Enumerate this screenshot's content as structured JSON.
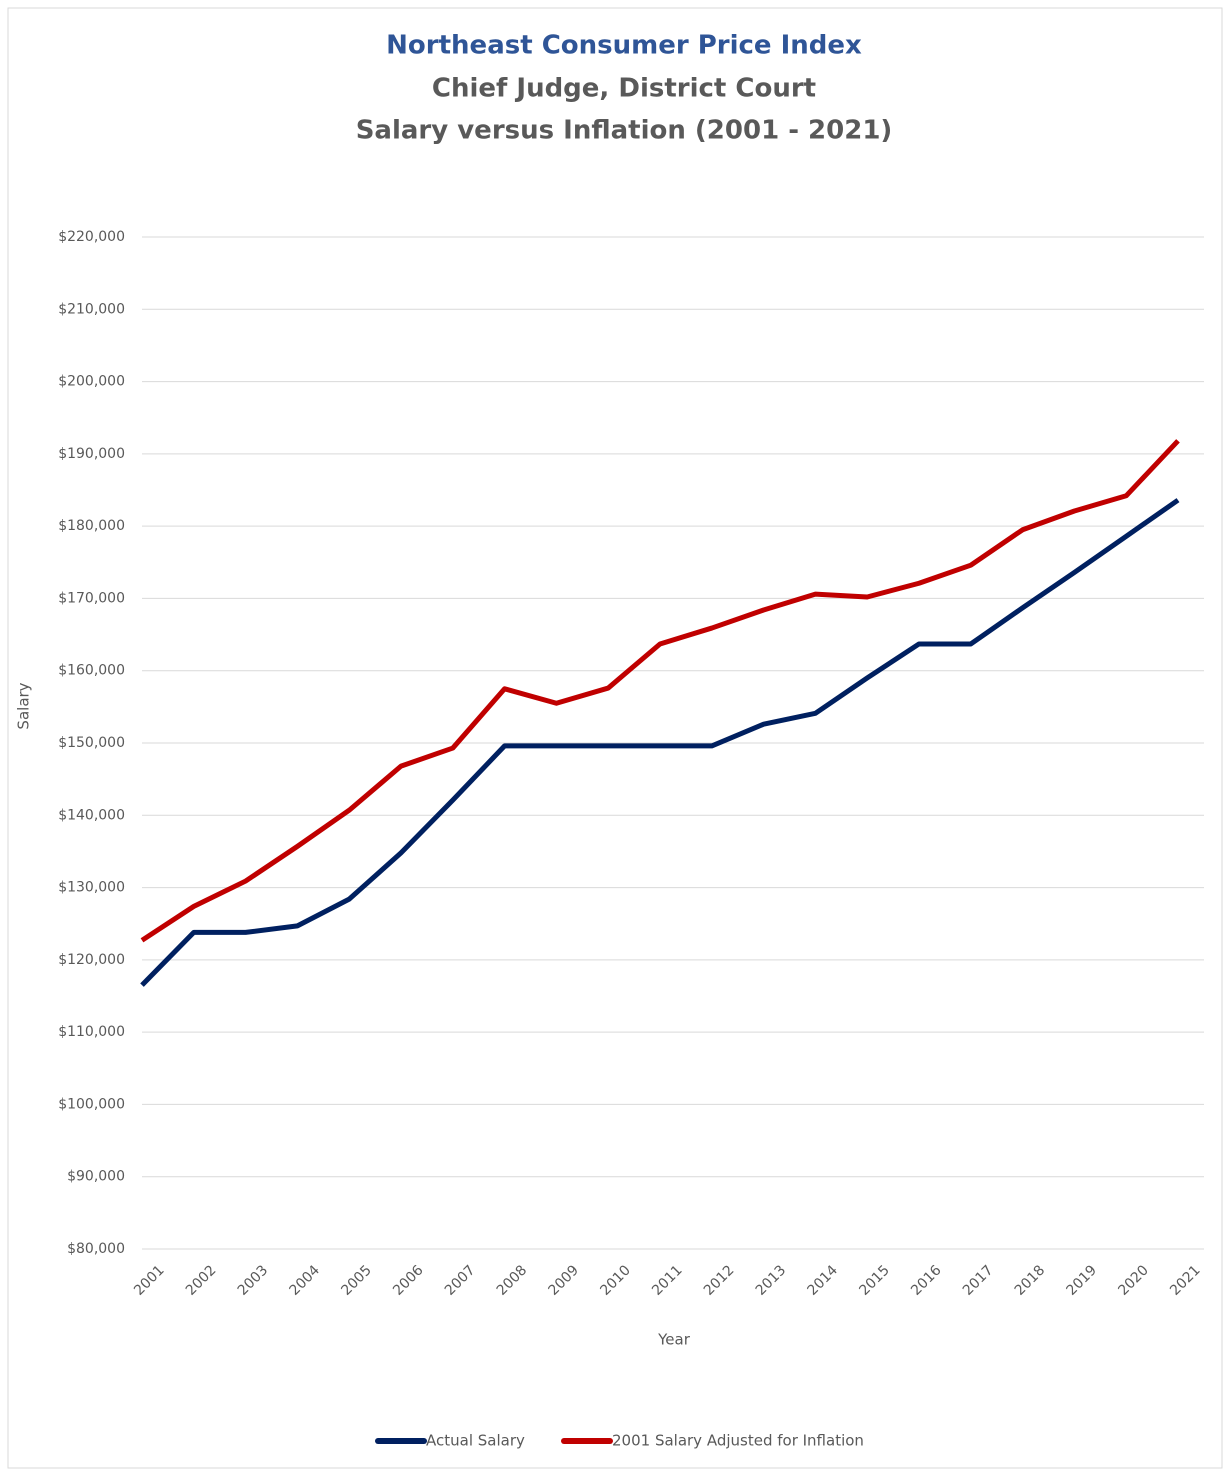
{
  "chart_data": {
    "type": "line",
    "title": "Northeast Consumer Price Index",
    "subtitle": [
      "Chief Judge, District Court",
      "Salary versus Inflation (2001 - 2021)"
    ],
    "xlabel": "Year",
    "ylabel": "Salary",
    "categories": [
      "2001",
      "2002",
      "2003",
      "2004",
      "2005",
      "2006",
      "2007",
      "2008",
      "2009",
      "2010",
      "2011",
      "2012",
      "2013",
      "2014",
      "2015",
      "2016",
      "2017",
      "2018",
      "2019",
      "2020",
      "2021"
    ],
    "series": [
      {
        "name": "Actual Salary",
        "color": "#002060",
        "values": [
          116500,
          123800,
          123800,
          124700,
          128400,
          134800,
          142100,
          149600,
          149600,
          149600,
          149600,
          149600,
          152600,
          154100,
          159000,
          163700,
          163700,
          168700,
          173600,
          178600,
          183600
        ]
      },
      {
        "name": "2001 Salary Adjusted for Inflation",
        "color": "#c00000",
        "values": [
          122700,
          127400,
          130900,
          135700,
          140700,
          146800,
          149300,
          157500,
          155500,
          157600,
          163700,
          165900,
          168400,
          170600,
          170200,
          172100,
          174600,
          179500,
          182100,
          184200,
          191800
        ]
      }
    ],
    "ylim": [
      80000,
      220000
    ],
    "yticks": [
      {
        "value": 80000,
        "label": "$80,000"
      },
      {
        "value": 90000,
        "label": "$90,000"
      },
      {
        "value": 100000,
        "label": "$100,000"
      },
      {
        "value": 110000,
        "label": "$110,000"
      },
      {
        "value": 120000,
        "label": "$120,000"
      },
      {
        "value": 130000,
        "label": "$130,000"
      },
      {
        "value": 140000,
        "label": "$140,000"
      },
      {
        "value": 150000,
        "label": "$150,000"
      },
      {
        "value": 160000,
        "label": "$160,000"
      },
      {
        "value": 170000,
        "label": "$170,000"
      },
      {
        "value": 180000,
        "label": "$180,000"
      },
      {
        "value": 190000,
        "label": "$190,000"
      },
      {
        "value": 200000,
        "label": "$200,000"
      },
      {
        "value": 210000,
        "label": "$210,000"
      },
      {
        "value": 220000,
        "label": "$220,000"
      }
    ],
    "grid": true,
    "legend": "bottom"
  }
}
